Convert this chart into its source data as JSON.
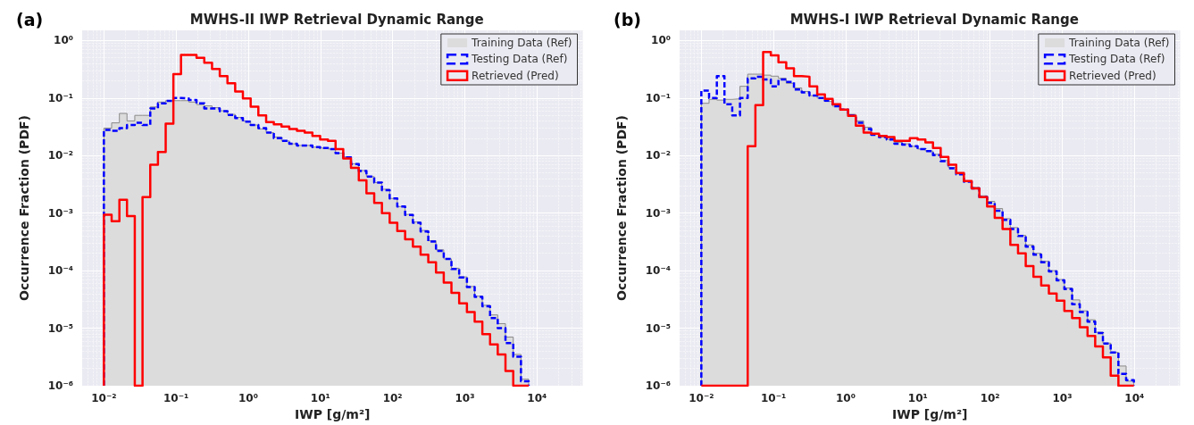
{
  "chart_data": [
    {
      "type": "histogram",
      "title": "MWHS-II IWP Retrieval Dynamic Range",
      "xlabel": "IWP [g/m²]",
      "ylabel": "Occurrence Fraction (PDF)",
      "annotations": [
        "(a)"
      ],
      "log": "xy",
      "grid": true,
      "legend": "top right",
      "xlim": [
        0.005,
        43000
      ],
      "ylim": [
        1e-06,
        1.5
      ],
      "xticks": [
        {
          "value": 0.01,
          "label": "10⁻²"
        },
        {
          "value": 0.1,
          "label": "10⁻¹"
        },
        {
          "value": 1,
          "label": "10⁰"
        },
        {
          "value": 10,
          "label": "10¹"
        },
        {
          "value": 100,
          "label": "10²"
        },
        {
          "value": 1000,
          "label": "10³"
        },
        {
          "value": 10000,
          "label": "10⁴"
        }
      ],
      "yticks": [
        {
          "value": 1e-06,
          "label": "10⁻⁶"
        },
        {
          "value": 1e-05,
          "label": "10⁻⁵"
        },
        {
          "value": 0.0001,
          "label": "10⁻⁴"
        },
        {
          "value": 0.001,
          "label": "10⁻³"
        },
        {
          "value": 0.01,
          "label": "10⁻²"
        },
        {
          "value": 0.1,
          "label": "10⁻¹"
        },
        {
          "value": 1,
          "label": "10⁰"
        }
      ],
      "bins": [
        0.01,
        0.0128,
        0.0164,
        0.0209,
        0.0268,
        0.0343,
        0.0439,
        0.0561,
        0.0718,
        0.0918,
        0.117,
        0.15,
        0.192,
        0.246,
        0.315,
        0.403,
        0.515,
        0.659,
        0.843,
        1.08,
        1.38,
        1.77,
        2.26,
        2.89,
        3.7,
        4.73,
        6.05,
        7.74,
        9.91,
        12.7,
        16.2,
        20.7,
        26.5,
        34,
        43.4,
        55.6,
        71.1,
        91,
        116,
        149,
        191,
        244,
        312,
        399,
        511,
        653,
        836,
        1070,
        1370,
        1750,
        2240,
        2860,
        3660,
        4690,
        6000,
        7670
      ],
      "series": [
        {
          "name": "Training Data (Ref)",
          "color": "#dcdcdc",
          "values": [
            0.03,
            0.037,
            0.054,
            0.04,
            0.05,
            0.05,
            0.07,
            0.085,
            0.09,
            0.09,
            0.09,
            0.085,
            0.077,
            0.073,
            0.068,
            0.06,
            0.052,
            0.046,
            0.04,
            0.034,
            0.029,
            0.025,
            0.021,
            0.018,
            0.016,
            0.015,
            0.015,
            0.014,
            0.0135,
            0.013,
            0.011,
            0.0095,
            0.0072,
            0.0055,
            0.0043,
            0.0034,
            0.0026,
            0.0018,
            0.0013,
            0.00095,
            0.0007,
            0.0005,
            0.00033,
            0.00023,
            0.00016,
            0.00011,
            7.8e-05,
            5.3e-05,
            3.6e-05,
            2.5e-05,
            1.7e-05,
            1.2e-05,
            7e-06,
            3.5e-06,
            1.3e-06
          ]
        },
        {
          "name": "Testing Data (Ref)",
          "color": "#0000ff",
          "line_style": "dashed",
          "values": [
            0.028,
            0.027,
            0.03,
            0.034,
            0.037,
            0.034,
            0.066,
            0.081,
            0.089,
            0.1,
            0.098,
            0.092,
            0.081,
            0.066,
            0.066,
            0.059,
            0.051,
            0.045,
            0.039,
            0.034,
            0.03,
            0.025,
            0.02,
            0.018,
            0.016,
            0.015,
            0.015,
            0.014,
            0.0135,
            0.013,
            0.011,
            0.0093,
            0.0071,
            0.0054,
            0.0043,
            0.0034,
            0.0025,
            0.0018,
            0.0013,
            0.00093,
            0.00068,
            0.00048,
            0.00032,
            0.00022,
            0.00016,
            0.000107,
            7.6e-05,
            5.2e-05,
            3.5e-05,
            2.4e-05,
            1.5e-05,
            1e-05,
            5.5e-06,
            3.2e-06,
            1.2e-06
          ]
        },
        {
          "name": "Retrieved (Pred)",
          "color": "#ff0000",
          "line_style": "solid",
          "values": [
            0.00094,
            0.00072,
            0.0017,
            0.00089,
            null,
            0.0019,
            0.0069,
            0.0115,
            0.036,
            0.26,
            0.56,
            0.56,
            0.5,
            0.41,
            0.32,
            0.24,
            0.18,
            0.13,
            0.098,
            0.071,
            0.05,
            0.038,
            0.035,
            0.032,
            0.029,
            0.027,
            0.025,
            0.022,
            0.019,
            0.018,
            0.013,
            0.0089,
            0.0061,
            0.0037,
            0.0022,
            0.0015,
            0.001,
            0.00068,
            0.00049,
            0.00035,
            0.00026,
            0.00019,
            0.00014,
            9.3e-05,
            6.2e-05,
            4.1e-05,
            2.7e-05,
            1.9e-05,
            1.3e-05,
            7.9e-06,
            5.2e-06,
            3.5e-06,
            1.8e-06,
            null,
            null
          ]
        }
      ]
    },
    {
      "type": "histogram",
      "title": "MWHS-I IWP Retrieval Dynamic Range",
      "xlabel": "IWP [g/m²]",
      "ylabel": "Occurrence Fraction (PDF)",
      "annotations": [
        "(b)"
      ],
      "log": "xy",
      "grid": true,
      "legend": "top right",
      "xlim": [
        0.005,
        43000
      ],
      "ylim": [
        1e-06,
        1.5
      ],
      "xticks": [
        {
          "value": 0.01,
          "label": "10⁻²"
        },
        {
          "value": 0.1,
          "label": "10⁻¹"
        },
        {
          "value": 1,
          "label": "10⁰"
        },
        {
          "value": 10,
          "label": "10¹"
        },
        {
          "value": 100,
          "label": "10²"
        },
        {
          "value": 1000,
          "label": "10³"
        },
        {
          "value": 10000,
          "label": "10⁴"
        }
      ],
      "yticks": [
        {
          "value": 1e-06,
          "label": "10⁻⁶"
        },
        {
          "value": 1e-05,
          "label": "10⁻⁵"
        },
        {
          "value": 0.0001,
          "label": "10⁻⁴"
        },
        {
          "value": 0.001,
          "label": "10⁻³"
        },
        {
          "value": 0.01,
          "label": "10⁻²"
        },
        {
          "value": 0.1,
          "label": "10⁻¹"
        },
        {
          "value": 1,
          "label": "10⁰"
        }
      ],
      "bins": [
        0.01,
        0.0128,
        0.0164,
        0.0209,
        0.0268,
        0.0343,
        0.0439,
        0.0561,
        0.0718,
        0.0918,
        0.117,
        0.15,
        0.192,
        0.246,
        0.315,
        0.403,
        0.515,
        0.659,
        0.843,
        1.08,
        1.38,
        1.77,
        2.26,
        2.89,
        3.7,
        4.73,
        6.05,
        7.74,
        9.91,
        12.7,
        16.2,
        20.7,
        26.5,
        34,
        43.4,
        55.6,
        71.1,
        91,
        116,
        149,
        191,
        244,
        312,
        399,
        511,
        653,
        836,
        1070,
        1370,
        1750,
        2240,
        2860,
        3660,
        4690,
        6000,
        7670,
        9820
      ],
      "series": [
        {
          "name": "Training Data (Ref)",
          "color": "#dcdcdc",
          "values": [
            0.081,
            0.095,
            0.092,
            0.095,
            0.097,
            0.16,
            0.26,
            0.26,
            0.25,
            0.24,
            0.22,
            0.18,
            0.15,
            0.13,
            0.11,
            0.1,
            0.087,
            0.072,
            0.063,
            0.052,
            0.04,
            0.031,
            0.024,
            0.021,
            0.019,
            0.017,
            0.016,
            0.0145,
            0.013,
            0.012,
            0.0105,
            0.0082,
            0.0062,
            0.0048,
            0.0036,
            0.0028,
            0.002,
            0.0016,
            0.0012,
            0.0008,
            0.00056,
            0.00041,
            0.00028,
            0.0002,
            0.000145,
            0.0001,
            7e-05,
            5e-05,
            3.1e-05,
            2e-05,
            1.4e-05,
            8.5e-06,
            5.5e-06,
            3.8e-06,
            2.2e-06,
            1.2e-06
          ]
        },
        {
          "name": "Testing Data (Ref)",
          "color": "#0000ff",
          "line_style": "dashed",
          "values": [
            0.135,
            0.1,
            0.24,
            0.078,
            0.05,
            0.1,
            0.22,
            0.235,
            0.21,
            0.16,
            0.21,
            0.19,
            0.14,
            0.125,
            0.11,
            0.1,
            0.09,
            0.072,
            0.063,
            0.05,
            0.037,
            0.029,
            0.023,
            0.021,
            0.019,
            0.016,
            0.0155,
            0.0145,
            0.013,
            0.012,
            0.0102,
            0.008,
            0.006,
            0.0047,
            0.0035,
            0.0027,
            0.0019,
            0.0015,
            0.0011,
            0.00076,
            0.00053,
            0.0004,
            0.00026,
            0.00019,
            0.00014,
            9.7e-05,
            6.8e-05,
            4.8e-05,
            2.6e-05,
            1.9e-05,
            1.3e-05,
            8.2e-06,
            5.4e-06,
            3.8e-06,
            1.6e-06,
            1.25e-06
          ]
        },
        {
          "name": "Retrieved (Pred)",
          "color": "#ff0000",
          "line_style": "solid",
          "values": [
            null,
            null,
            null,
            null,
            null,
            null,
            0.0145,
            0.075,
            0.63,
            0.55,
            0.42,
            0.33,
            0.24,
            0.235,
            0.16,
            0.116,
            0.097,
            0.078,
            0.063,
            0.049,
            0.033,
            0.025,
            0.024,
            0.022,
            0.021,
            0.018,
            0.018,
            0.02,
            0.019,
            0.017,
            0.0135,
            0.0095,
            0.0069,
            0.005,
            0.0036,
            0.0027,
            0.0019,
            0.0013,
            0.00083,
            0.00053,
            0.00028,
            0.0002,
            0.00012,
            7.8e-05,
            5.5e-05,
            4e-05,
            3e-05,
            2e-05,
            1.5e-05,
            1.04e-05,
            7.3e-06,
            4.8e-06,
            3.1e-06,
            1.5e-06,
            null,
            null
          ]
        }
      ]
    }
  ]
}
